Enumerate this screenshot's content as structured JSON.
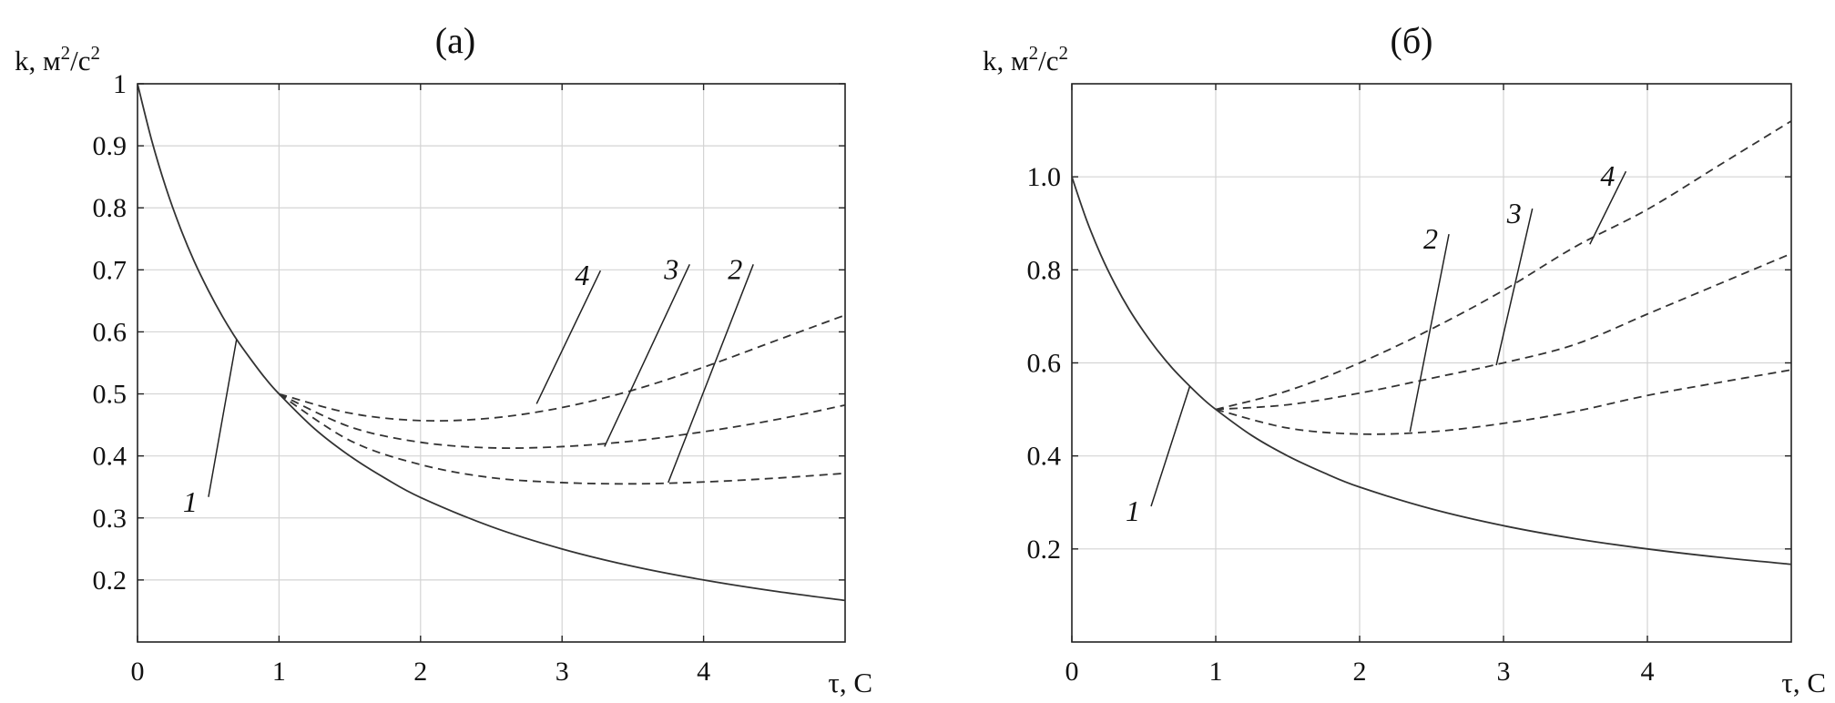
{
  "chart_data": [
    {
      "type": "line",
      "title": "(а)",
      "xlabel": "τ, С",
      "ylabel_base": "k, м",
      "ylabel_sup1": "2",
      "ylabel_mid": "/с",
      "ylabel_sup2": "2",
      "xlim": [
        0,
        5
      ],
      "ylim": [
        0.1,
        1.0
      ],
      "x_ticks": [
        "0",
        "1",
        "2",
        "3",
        "4"
      ],
      "y_ticks": [
        "0.2",
        "0.3",
        "0.4",
        "0.5",
        "0.6",
        "0.7",
        "0.8",
        "0.9",
        "1"
      ],
      "x_tick_values": [
        0,
        1,
        2,
        3,
        4
      ],
      "y_tick_values": [
        0.2,
        0.3,
        0.4,
        0.5,
        0.6,
        0.7,
        0.8,
        0.9,
        1.0
      ],
      "grid": true,
      "series": [
        {
          "label": "1",
          "style": "solid",
          "x": [
            0,
            0.1,
            0.2,
            0.3,
            0.4,
            0.5,
            0.6,
            0.7,
            0.8,
            0.9,
            1.0,
            1.25,
            1.5,
            1.75,
            2.0,
            2.5,
            3.0,
            3.5,
            4.0,
            4.5,
            5.0
          ],
          "y": [
            1.0,
            0.909,
            0.833,
            0.769,
            0.714,
            0.667,
            0.625,
            0.588,
            0.556,
            0.526,
            0.5,
            0.444,
            0.4,
            0.364,
            0.333,
            0.286,
            0.25,
            0.222,
            0.2,
            0.182,
            0.167
          ]
        },
        {
          "label": "2",
          "style": "dashed",
          "x": [
            1.0,
            1.5,
            2.0,
            2.5,
            3.0,
            3.5,
            4.0,
            4.5,
            5.0
          ],
          "y": [
            0.5,
            0.425,
            0.386,
            0.365,
            0.357,
            0.355,
            0.358,
            0.364,
            0.372
          ]
        },
        {
          "label": "3",
          "style": "dashed",
          "x": [
            1.0,
            1.5,
            2.0,
            2.5,
            3.0,
            3.5,
            4.0,
            4.5,
            5.0
          ],
          "y": [
            0.5,
            0.447,
            0.422,
            0.413,
            0.415,
            0.424,
            0.439,
            0.458,
            0.482
          ]
        },
        {
          "label": "4",
          "style": "dashed",
          "x": [
            1.0,
            1.5,
            2.0,
            2.5,
            3.0,
            3.5,
            4.0,
            4.5,
            5.0
          ],
          "y": [
            0.5,
            0.469,
            0.457,
            0.461,
            0.478,
            0.506,
            0.543,
            0.585,
            0.627
          ]
        }
      ],
      "callouts": [
        {
          "text": "1",
          "x": 0.45,
          "y": 0.325,
          "tip_x": 0.7,
          "tip_y": 0.588
        },
        {
          "text": "2",
          "x": 4.3,
          "y": 0.7,
          "tip_x": 3.75,
          "tip_y": 0.357
        },
        {
          "text": "3",
          "x": 3.85,
          "y": 0.7,
          "tip_x": 3.3,
          "tip_y": 0.415
        },
        {
          "text": "4",
          "x": 3.22,
          "y": 0.69,
          "tip_x": 2.82,
          "tip_y": 0.484
        }
      ]
    },
    {
      "type": "line",
      "title": "(б)",
      "xlabel": "τ, С",
      "ylabel_base": "k, м",
      "ylabel_sup1": "2",
      "ylabel_mid": "/с",
      "ylabel_sup2": "2",
      "xlim": [
        0,
        5
      ],
      "ylim": [
        0.0,
        1.2
      ],
      "x_ticks": [
        "0",
        "1",
        "2",
        "3",
        "4"
      ],
      "y_ticks": [
        "0.2",
        "0.4",
        "0.6",
        "0.8",
        "1.0"
      ],
      "x_tick_values": [
        0,
        1,
        2,
        3,
        4
      ],
      "y_tick_values": [
        0.2,
        0.4,
        0.6,
        0.8,
        1.0
      ],
      "grid": true,
      "series": [
        {
          "label": "1",
          "style": "solid",
          "x": [
            0,
            0.1,
            0.2,
            0.3,
            0.4,
            0.5,
            0.6,
            0.7,
            0.8,
            0.9,
            1.0,
            1.25,
            1.5,
            1.75,
            2.0,
            2.5,
            3.0,
            3.5,
            4.0,
            4.5,
            5.0
          ],
          "y": [
            1.0,
            0.909,
            0.833,
            0.769,
            0.714,
            0.667,
            0.625,
            0.588,
            0.556,
            0.526,
            0.5,
            0.444,
            0.4,
            0.364,
            0.333,
            0.286,
            0.25,
            0.222,
            0.2,
            0.182,
            0.167
          ]
        },
        {
          "label": "2",
          "style": "dashed",
          "x": [
            1.0,
            1.5,
            2.0,
            2.5,
            3.0,
            3.5,
            4.0,
            4.5,
            5.0
          ],
          "y": [
            0.5,
            0.46,
            0.447,
            0.452,
            0.47,
            0.496,
            0.53,
            0.558,
            0.585
          ]
        },
        {
          "label": "3",
          "style": "dashed",
          "x": [
            1.0,
            1.5,
            2.0,
            2.5,
            3.0,
            3.5,
            4.0,
            4.5,
            5.0
          ],
          "y": [
            0.5,
            0.51,
            0.535,
            0.567,
            0.6,
            0.64,
            0.705,
            0.77,
            0.835
          ]
        },
        {
          "label": "4",
          "style": "dashed",
          "x": [
            1.0,
            1.5,
            2.0,
            2.5,
            3.0,
            3.5,
            4.0,
            4.5,
            5.0
          ],
          "y": [
            0.5,
            0.54,
            0.6,
            0.673,
            0.756,
            0.85,
            0.93,
            1.025,
            1.12
          ]
        }
      ],
      "callouts": [
        {
          "text": "1",
          "x": 0.5,
          "y": 0.28,
          "tip_x": 0.82,
          "tip_y": 0.55
        },
        {
          "text": "2",
          "x": 2.57,
          "y": 0.865,
          "tip_x": 2.35,
          "tip_y": 0.452
        },
        {
          "text": "3",
          "x": 3.15,
          "y": 0.92,
          "tip_x": 2.95,
          "tip_y": 0.595
        },
        {
          "text": "4",
          "x": 3.8,
          "y": 1.0,
          "tip_x": 3.6,
          "tip_y": 0.855
        }
      ]
    }
  ]
}
